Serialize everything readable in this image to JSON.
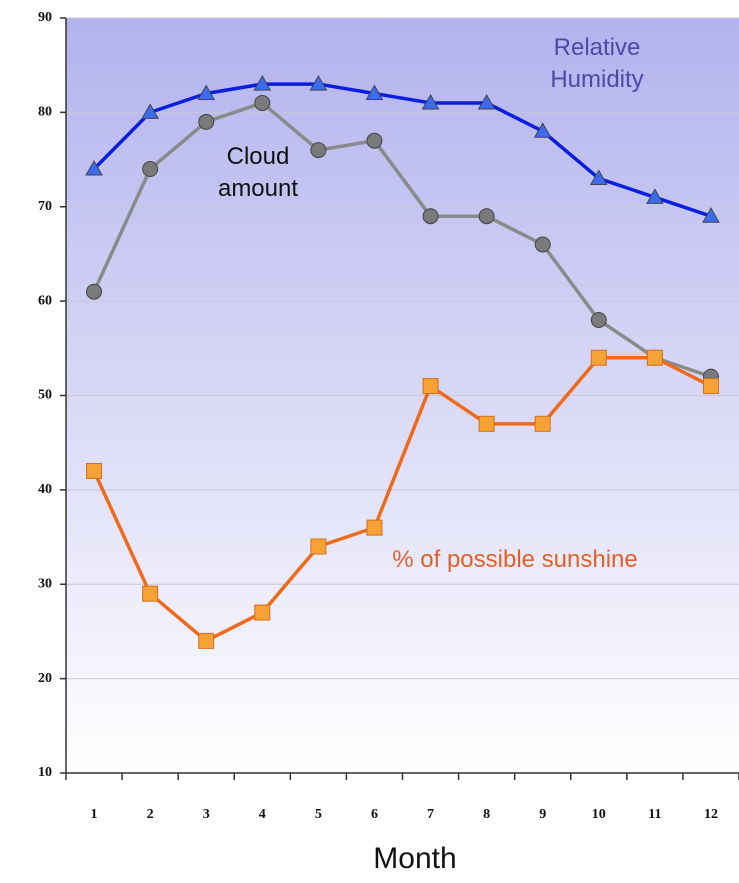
{
  "chart_data": {
    "type": "line",
    "categories": [
      1,
      2,
      3,
      4,
      5,
      6,
      7,
      8,
      9,
      10,
      11,
      12
    ],
    "series": [
      {
        "name": "Relative Humidity",
        "color": "#0a1ee0",
        "marker": "triangle",
        "marker_color": "#3b6cf0",
        "label_color": "#4a4aa8",
        "values": [
          74,
          80,
          82,
          83,
          83,
          82,
          81,
          81,
          78,
          73,
          71,
          69
        ]
      },
      {
        "name": "Cloud amount",
        "color": "#8a8a8a",
        "marker": "circle",
        "marker_color": "#7a7a7a",
        "label_color": "#111111",
        "values": [
          61,
          74,
          79,
          81,
          76,
          77,
          69,
          69,
          66,
          58,
          54,
          52
        ]
      },
      {
        "name": "% of possible sunshine",
        "color": "#ee6a1c",
        "marker": "square",
        "marker_color": "#f7a234",
        "label_color": "#e2602a",
        "values": [
          42,
          29,
          24,
          27,
          34,
          36,
          51,
          47,
          47,
          54,
          54,
          51
        ]
      }
    ],
    "xlabel": "Month",
    "ylim": [
      10,
      90
    ],
    "yticks": [
      10,
      20,
      30,
      40,
      50,
      60,
      70,
      80,
      90
    ],
    "grid": true
  }
}
